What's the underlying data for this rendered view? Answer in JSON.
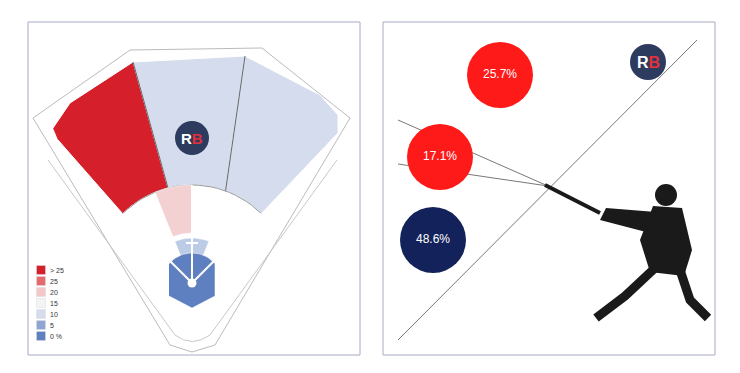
{
  "chart_data": [
    {
      "type": "spray",
      "logo": "RB",
      "colors": [
        "#d51f2b",
        "#d4dcee",
        "#d4dcee",
        "#f3d1d3",
        "#bccbe6",
        "#5f80c0"
      ],
      "color_scale": {
        "labels": [
          "> 25",
          "25",
          "20",
          "15",
          "10",
          "5",
          "0 %"
        ],
        "colors": [
          "#d51f2b",
          "#e46a70",
          "#f3c6c8",
          "#f4f4f6",
          "#d4dcee",
          "#8fa6d4",
          "#5f80c0"
        ]
      }
    },
    {
      "type": "bubble",
      "logo": "RB",
      "values": [
        25.7,
        17.1,
        48.6
      ],
      "value_labels": [
        "25.7%",
        "17.1%",
        "48.6%"
      ],
      "colors": [
        "#ff1a1a",
        "#ff1a1a",
        "#13225a"
      ]
    }
  ]
}
